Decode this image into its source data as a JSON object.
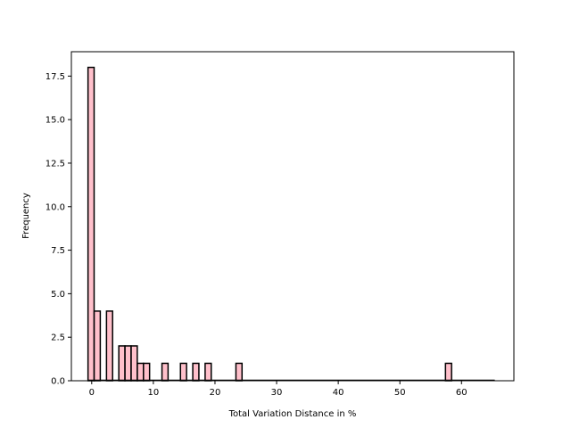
{
  "chart_data": {
    "type": "bar",
    "title": "",
    "xlabel": "Total Variation Distance in %",
    "ylabel": "Frequency",
    "xlim": [
      -3.3,
      68.5
    ],
    "ylim": [
      0,
      18.9
    ],
    "bin_width": 0.99,
    "bin_starts": [
      -0.6,
      0.4,
      2.4,
      4.4,
      5.4,
      6.4,
      7.4,
      8.4,
      11.4,
      14.4,
      16.4,
      18.4,
      23.4,
      57.4
    ],
    "values": [
      18,
      4,
      4,
      2,
      2,
      2,
      1,
      1,
      1,
      1,
      1,
      1,
      1,
      1
    ],
    "baseline_range": [
      -0.6,
      65.4
    ],
    "bar_color": "#ffc0cb",
    "edge_color": "#000000",
    "xticks": [
      0,
      10,
      20,
      30,
      40,
      50,
      60
    ],
    "xtick_labels": [
      "0",
      "10",
      "20",
      "30",
      "40",
      "50",
      "60"
    ],
    "yticks": [
      0,
      2.5,
      5,
      7.5,
      10,
      12.5,
      15,
      17.5
    ],
    "ytick_labels": [
      "0.0",
      "2.5",
      "5.0",
      "7.5",
      "10.0",
      "12.5",
      "15.0",
      "17.5"
    ],
    "grid": false,
    "legend": "none"
  }
}
